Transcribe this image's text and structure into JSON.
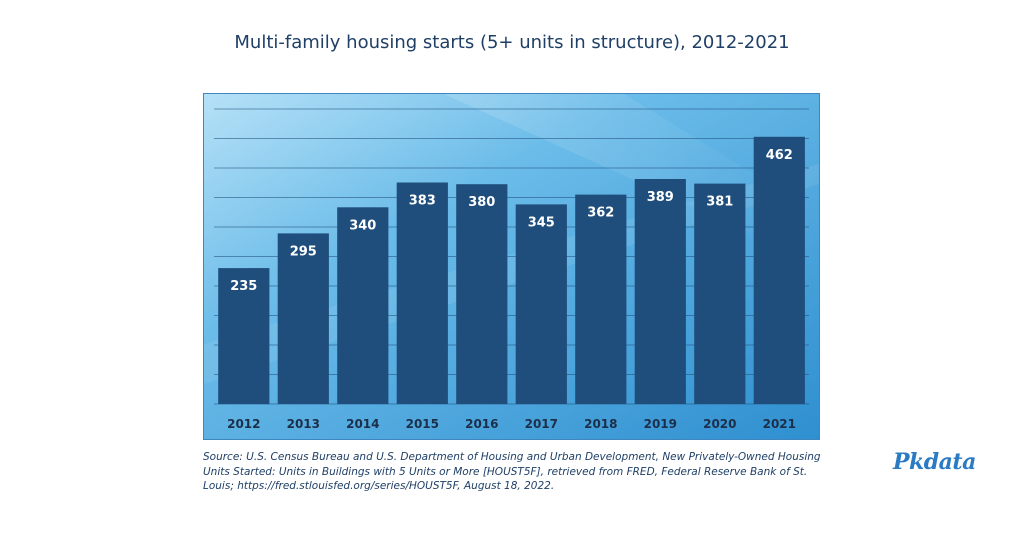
{
  "chart_data": {
    "type": "bar",
    "title": "Multi-family housing starts (5+ units in structure), 2012-2021",
    "categories": [
      "2012",
      "2013",
      "2014",
      "2015",
      "2016",
      "2017",
      "2018",
      "2019",
      "2020",
      "2021"
    ],
    "values": [
      235,
      295,
      340,
      383,
      380,
      345,
      362,
      389,
      381,
      462
    ],
    "data_labels": [
      "235",
      "295",
      "340",
      "383",
      "380",
      "345",
      "362",
      "389",
      "381",
      "462"
    ],
    "xlabel": "",
    "ylabel": "",
    "ylim": [
      0,
      510
    ],
    "grid": true,
    "legend": "none",
    "bar_color": "#1f4e7c",
    "background_color": "#5fb0e3"
  },
  "source_text": "Source: U.S. Census Bureau and U.S. Department of Housing and Urban Development, New Privately-Owned Housing Units Started: Units in Buildings with 5 Units or More [HOUST5F], retrieved from FRED, Federal Reserve Bank of St. Louis; https://fred.stlouisfed.org/series/HOUST5F, August 18, 2022.",
  "brand": {
    "logo_text": "Pkdata",
    "color": "#2a7bc3"
  }
}
